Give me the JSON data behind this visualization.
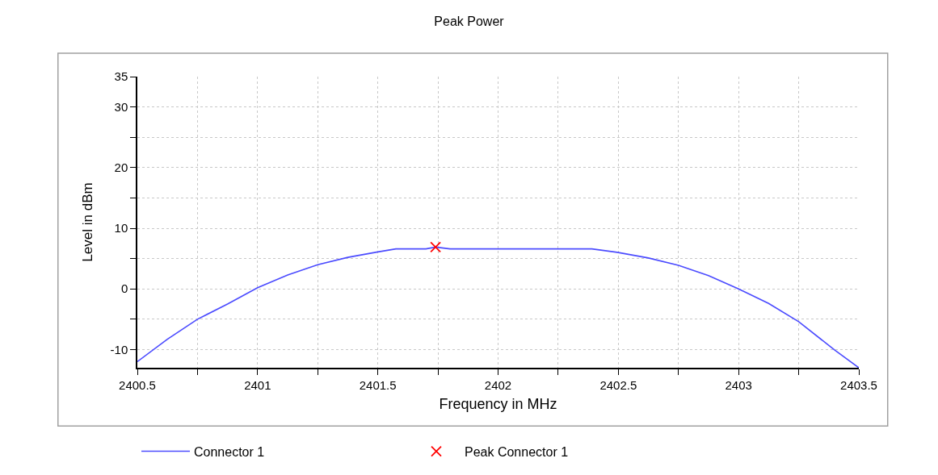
{
  "chart_data": {
    "type": "line",
    "title": "Peak Power",
    "xlabel": "Frequency in MHz",
    "ylabel": "Level in dBm",
    "xlim": [
      2400.5,
      2403.5
    ],
    "ylim": [
      -13,
      35
    ],
    "xticks": [
      2400.5,
      {
        "value": 2400.75,
        "label": null
      },
      2401,
      {
        "value": 2401.25,
        "label": null
      },
      2401.5,
      {
        "value": 2401.75,
        "label": null
      },
      2402,
      {
        "value": 2402.25,
        "label": null
      },
      2402.5,
      {
        "value": 2402.75,
        "label": null
      },
      2403,
      {
        "value": 2403.25,
        "label": null
      },
      2403.5
    ],
    "yticks": [
      -10,
      {
        "value": -5,
        "label": null
      },
      0,
      {
        "value": 5,
        "label": null
      },
      10,
      {
        "value": 15,
        "label": null
      },
      20,
      {
        "value": 25,
        "label": null
      },
      30,
      35
    ],
    "grid": true,
    "legend": "bottom",
    "series": [
      {
        "name": "Connector 1",
        "color": "#4b4bff",
        "marker": "none",
        "line_style": "solid",
        "x": [
          2400.5,
          2400.625,
          2400.75,
          2400.875,
          2401,
          2401.125,
          2401.25,
          2401.375,
          2401.5,
          2401.575,
          2401.7,
          2401.74,
          2401.8,
          2402.39,
          2402.5,
          2402.625,
          2402.75,
          2402.875,
          2403,
          2403.125,
          2403.25,
          2403.4,
          2403.5
        ],
        "values": [
          -12,
          -8.3,
          -5,
          -2.5,
          0.2,
          2.3,
          4,
          5.2,
          6.1,
          6.6,
          6.6,
          6.9,
          6.6,
          6.6,
          6.0,
          5.1,
          3.9,
          2.2,
          0,
          -2.4,
          -5.4,
          -10.1,
          -13
        ]
      },
      {
        "name": "Peak Connector 1",
        "color": "#ff0000",
        "type": "scatter",
        "marker": "cross",
        "x": [
          2401.74
        ],
        "values": [
          6.9
        ]
      }
    ]
  }
}
